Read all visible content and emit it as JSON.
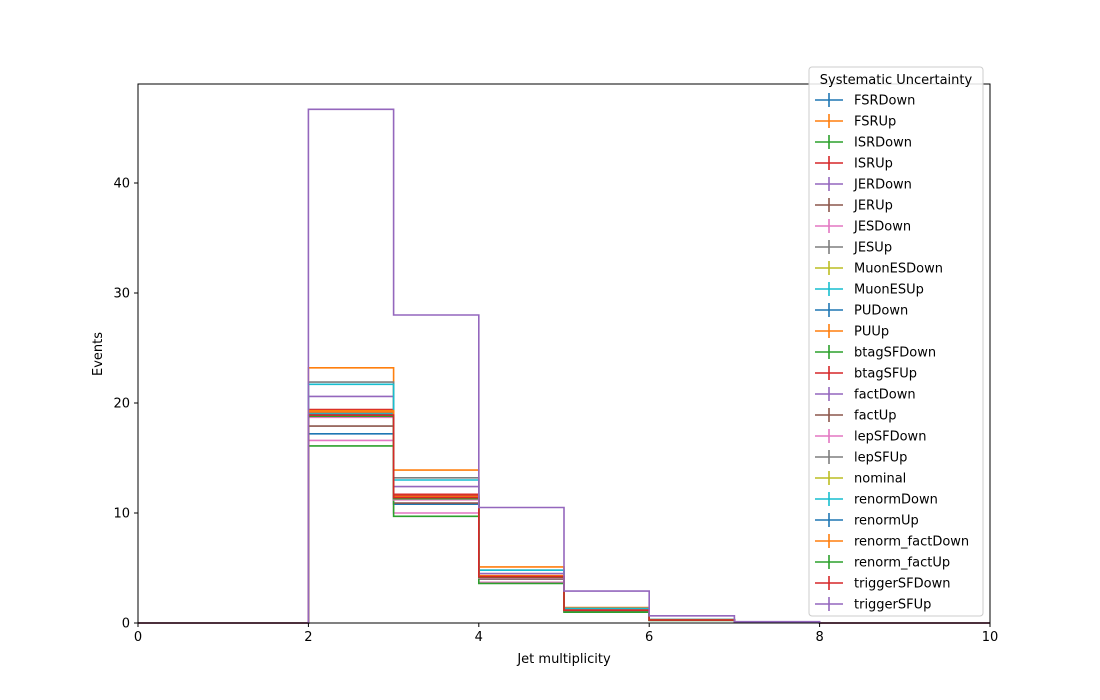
{
  "chart_data": {
    "type": "line",
    "drawstyle": "steps-post",
    "xlabel": "Jet multiplicity",
    "ylabel": "Events",
    "xlim": [
      0,
      10
    ],
    "ylim": [
      0,
      49
    ],
    "xticks": [
      0,
      2,
      4,
      6,
      8,
      10
    ],
    "yticks": [
      0,
      10,
      20,
      30,
      40
    ],
    "grid": false,
    "legend": {
      "title": "Systematic Uncertainty",
      "placement": "upper-right"
    },
    "bin_edges": [
      0,
      1,
      2,
      3,
      4,
      5,
      6,
      7,
      8,
      9,
      10
    ],
    "series": [
      {
        "name": "FSRDown",
        "color": "#1f77b4",
        "values": [
          0,
          0,
          17.2,
          10.8,
          4.0,
          1.1,
          0.25,
          0.05,
          0,
          0
        ]
      },
      {
        "name": "FSRUp",
        "color": "#ff7f0e",
        "values": [
          0,
          0,
          23.2,
          13.9,
          5.1,
          1.4,
          0.32,
          0.06,
          0,
          0
        ]
      },
      {
        "name": "ISRDown",
        "color": "#2ca02c",
        "values": [
          0,
          0,
          18.9,
          11.4,
          4.2,
          1.15,
          0.27,
          0.05,
          0,
          0
        ]
      },
      {
        "name": "ISRUp",
        "color": "#d62728",
        "values": [
          0,
          0,
          19.4,
          11.7,
          4.3,
          1.18,
          0.28,
          0.05,
          0,
          0
        ]
      },
      {
        "name": "JERDown",
        "color": "#9467bd",
        "values": [
          0,
          0,
          20.6,
          12.4,
          4.5,
          1.25,
          0.29,
          0.05,
          0,
          0
        ]
      },
      {
        "name": "JERUp",
        "color": "#8c564b",
        "values": [
          0,
          0,
          17.9,
          10.9,
          4.0,
          1.1,
          0.26,
          0.05,
          0,
          0
        ]
      },
      {
        "name": "JESDown",
        "color": "#e377c2",
        "values": [
          0,
          0,
          16.6,
          10.0,
          3.7,
          1.02,
          0.24,
          0.04,
          0,
          0
        ]
      },
      {
        "name": "JESUp",
        "color": "#7f7f7f",
        "values": [
          0,
          0,
          21.9,
          13.2,
          4.8,
          1.33,
          0.31,
          0.06,
          0,
          0
        ]
      },
      {
        "name": "MuonESDown",
        "color": "#bcbd22",
        "values": [
          0,
          0,
          19.0,
          11.5,
          4.2,
          1.16,
          0.27,
          0.05,
          0,
          0
        ]
      },
      {
        "name": "MuonESUp",
        "color": "#17becf",
        "values": [
          0,
          0,
          21.7,
          13.0,
          4.8,
          1.32,
          0.31,
          0.06,
          0,
          0
        ]
      },
      {
        "name": "PUDown",
        "color": "#1f77b4",
        "values": [
          0,
          0,
          19.1,
          11.5,
          4.2,
          1.16,
          0.27,
          0.05,
          0,
          0
        ]
      },
      {
        "name": "PUUp",
        "color": "#ff7f0e",
        "values": [
          0,
          0,
          19.3,
          11.6,
          4.3,
          1.17,
          0.27,
          0.05,
          0,
          0
        ]
      },
      {
        "name": "btagSFDown",
        "color": "#2ca02c",
        "values": [
          0,
          0,
          16.1,
          9.7,
          3.6,
          0.98,
          0.23,
          0.04,
          0,
          0
        ]
      },
      {
        "name": "btagSFUp",
        "color": "#d62728",
        "values": [
          0,
          0,
          19.2,
          11.6,
          4.25,
          1.17,
          0.27,
          0.05,
          0,
          0
        ]
      },
      {
        "name": "factDown",
        "color": "#9467bd",
        "values": [
          0,
          0,
          19.0,
          11.4,
          4.2,
          1.15,
          0.27,
          0.05,
          0,
          0
        ]
      },
      {
        "name": "factUp",
        "color": "#8c564b",
        "values": [
          0,
          0,
          18.8,
          11.3,
          4.15,
          1.14,
          0.27,
          0.05,
          0,
          0
        ]
      },
      {
        "name": "lepSFDown",
        "color": "#e377c2",
        "values": [
          0,
          0,
          18.7,
          11.2,
          4.1,
          1.13,
          0.26,
          0.05,
          0,
          0
        ]
      },
      {
        "name": "lepSFUp",
        "color": "#7f7f7f",
        "values": [
          0,
          0,
          19.1,
          11.5,
          4.2,
          1.16,
          0.27,
          0.05,
          0,
          0
        ]
      },
      {
        "name": "nominal",
        "color": "#bcbd22",
        "values": [
          0,
          0,
          18.9,
          11.4,
          4.2,
          1.15,
          0.27,
          0.05,
          0,
          0
        ]
      },
      {
        "name": "renormDown",
        "color": "#17becf",
        "values": [
          0,
          0,
          19.0,
          11.4,
          4.2,
          1.15,
          0.27,
          0.05,
          0,
          0
        ]
      },
      {
        "name": "renormUp",
        "color": "#1f77b4",
        "values": [
          0,
          0,
          18.9,
          11.3,
          4.18,
          1.14,
          0.27,
          0.05,
          0,
          0
        ]
      },
      {
        "name": "renorm_factDown",
        "color": "#ff7f0e",
        "values": [
          0,
          0,
          19.2,
          11.5,
          4.22,
          1.16,
          0.27,
          0.05,
          0,
          0
        ]
      },
      {
        "name": "renorm_factUp",
        "color": "#2ca02c",
        "values": [
          0,
          0,
          18.8,
          11.3,
          4.15,
          1.14,
          0.26,
          0.05,
          0,
          0
        ]
      },
      {
        "name": "triggerSFDown",
        "color": "#d62728",
        "values": [
          0,
          0,
          18.9,
          11.4,
          4.2,
          1.15,
          0.27,
          0.05,
          0,
          0
        ]
      },
      {
        "name": "triggerSFUp",
        "color": "#9467bd",
        "values": [
          0,
          0,
          46.7,
          28.0,
          10.5,
          2.9,
          0.65,
          0.12,
          0,
          0
        ]
      }
    ]
  }
}
